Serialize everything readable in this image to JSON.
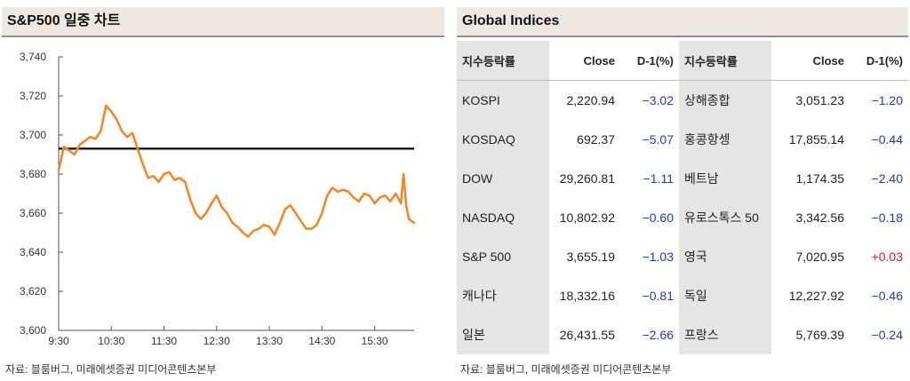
{
  "chart": {
    "title": "S&P500 일중 차트",
    "source": "자료: 블룸버그, 미래에셋증권 미디어콘텐츠본부"
  },
  "chart_data": {
    "type": "line",
    "title": "S&P500 일중 차트",
    "xlabel": "",
    "ylabel": "",
    "x_ticks": [
      "9:30",
      "10:30",
      "11:30",
      "12:30",
      "13:30",
      "14:30",
      "15:30"
    ],
    "y_ticks": [
      "3,740",
      "3,720",
      "3,700",
      "3,680",
      "3,660",
      "3,640",
      "3,620",
      "3,600"
    ],
    "ylim": [
      3600,
      3740
    ],
    "xlim_minutes_after_open": [
      0,
      405
    ],
    "reference_line": 3693,
    "line_color": "#f0892a",
    "reference_color": "#000000",
    "grid": false,
    "x_minutes_after_open": [
      0,
      6,
      12,
      18,
      24,
      30,
      36,
      42,
      48,
      54,
      60,
      66,
      72,
      78,
      84,
      90,
      96,
      102,
      108,
      114,
      120,
      126,
      132,
      138,
      144,
      150,
      156,
      162,
      168,
      174,
      180,
      186,
      192,
      198,
      204,
      210,
      216,
      222,
      228,
      234,
      240,
      246,
      252,
      258,
      264,
      270,
      276,
      282,
      288,
      294,
      300,
      306,
      312,
      318,
      324,
      330,
      336,
      342,
      348,
      354,
      360,
      366,
      372,
      378,
      384,
      390,
      393,
      396,
      399,
      402,
      405
    ],
    "values": [
      3682,
      3694,
      3692,
      3690,
      3695,
      3697,
      3699,
      3698,
      3702,
      3715,
      3712,
      3708,
      3702,
      3699,
      3701,
      3693,
      3685,
      3678,
      3679,
      3676,
      3680,
      3681,
      3677,
      3678,
      3676,
      3667,
      3660,
      3657,
      3660,
      3665,
      3669,
      3663,
      3660,
      3655,
      3653,
      3650,
      3648,
      3651,
      3652,
      3654,
      3653,
      3649,
      3655,
      3662,
      3664,
      3660,
      3656,
      3652,
      3652,
      3654,
      3660,
      3669,
      3673,
      3671,
      3672,
      3671,
      3668,
      3666,
      3670,
      3669,
      3665,
      3668,
      3669,
      3666,
      3670,
      3665,
      3680,
      3664,
      3657,
      3656,
      3655
    ]
  },
  "indices": {
    "title": "Global Indices",
    "source": "자료: 블룸버그, 미래에셋증권 미디어콘텐츠본부",
    "headers": {
      "name_left": "지수등락률",
      "close_left": "Close",
      "change_left": "D-1(%)",
      "name_right": "지수등락률",
      "close_right": "Close",
      "change_right": "D-1(%)"
    },
    "rows": [
      {
        "l_name": "KOSPI",
        "l_close": "2,220.94",
        "l_change": "−3.02",
        "r_name": "상해종합",
        "r_close": "3,051.23",
        "r_change": "−1.20"
      },
      {
        "l_name": "KOSDAQ",
        "l_close": "692.37",
        "l_change": "−5.07",
        "r_name": "홍콩항셍",
        "r_close": "17,855.14",
        "r_change": "−0.44"
      },
      {
        "l_name": "DOW",
        "l_close": "29,260.81",
        "l_change": "−1.11",
        "r_name": "베트남",
        "r_close": "1,174.35",
        "r_change": "−2.40"
      },
      {
        "l_name": "NASDAQ",
        "l_close": "10,802.92",
        "l_change": "−0.60",
        "r_name": "유로스톡스 50",
        "r_close": "3,342.56",
        "r_change": "−0.18"
      },
      {
        "l_name": "S&P 500",
        "l_close": "3,655.19",
        "l_change": "−1.03",
        "r_name": "영국",
        "r_close": "7,020.95",
        "r_change": "+0.03"
      },
      {
        "l_name": "캐나다",
        "l_close": "18,332.16",
        "l_change": "−0.81",
        "r_name": "독일",
        "r_close": "12,227.92",
        "r_change": "−0.46"
      },
      {
        "l_name": "일본",
        "l_close": "26,431.55",
        "l_change": "−2.66",
        "r_name": "프랑스",
        "r_close": "5,769.39",
        "r_change": "−0.24"
      }
    ],
    "colors": {
      "negative": "#1f3bbf",
      "positive": "#e0201a",
      "name_bg": "#e5e5e5"
    }
  }
}
